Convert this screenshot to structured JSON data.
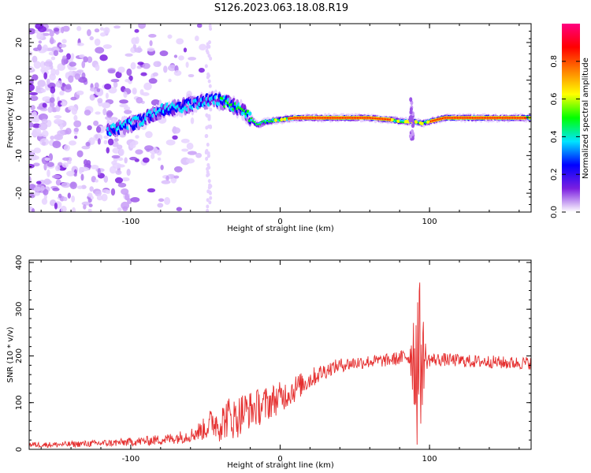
{
  "title": "S126.2023.063.18.08.R19",
  "chart_data": [
    {
      "type": "heatmap",
      "xlabel": "Height of straight line (km)",
      "ylabel": "Frequency (Hz)",
      "xlim": [
        -168,
        168
      ],
      "ylim": [
        -25,
        25
      ],
      "xticks": [
        -100,
        0,
        100
      ],
      "xtick_labels": [
        "-100",
        "0",
        "100"
      ],
      "yticks": [
        -20,
        -10,
        0,
        10,
        20
      ],
      "ytick_labels": [
        "-20",
        "-10",
        "0",
        "10",
        "20"
      ],
      "grid": false,
      "colorbar": {
        "label": "Normalized spectral amplitude",
        "range": [
          0,
          1
        ],
        "ticks": [
          0.0,
          0.2,
          0.4,
          0.6,
          0.8
        ],
        "tick_labels": [
          "0.0",
          "0.2",
          "0.4",
          "0.6",
          "0.8"
        ],
        "colormap": [
          "#ffffff",
          "#7b1fe0",
          "#0000ff",
          "#00e5ff",
          "#00ff00",
          "#ffff00",
          "#ff8000",
          "#ff0000",
          "#ff0080"
        ]
      },
      "ridge": {
        "x": [
          -110,
          -95,
          -80,
          -65,
          -55,
          -45,
          -35,
          -25,
          -20,
          -15,
          -10,
          0,
          10,
          30,
          60,
          75,
          80,
          85,
          90,
          95,
          100,
          110,
          130,
          150,
          168
        ],
        "y": [
          -3,
          -1,
          2,
          3,
          4,
          5,
          4,
          2,
          0,
          -2,
          -1,
          -0.5,
          0,
          0,
          0,
          -0.5,
          -1,
          -1,
          -1,
          -1.5,
          -1,
          0,
          0,
          0,
          0
        ]
      },
      "noise_region_x": [
        -168,
        -60
      ]
    },
    {
      "type": "line",
      "xlabel": "Height of straight line (km)",
      "ylabel": "SNR (10 * v/v)",
      "xlim": [
        -168,
        168
      ],
      "ylim": [
        0,
        405
      ],
      "xticks": [
        -100,
        0,
        100
      ],
      "xtick_labels": [
        "-100",
        "0",
        "100"
      ],
      "yticks": [
        0,
        100,
        200,
        300,
        400
      ],
      "ytick_labels": [
        "0",
        "100",
        "200",
        "300",
        "400"
      ],
      "grid": false,
      "series_color": "#e53030",
      "x": [
        -168,
        -150,
        -130,
        -110,
        -90,
        -75,
        -60,
        -50,
        -45,
        -40,
        -35,
        -30,
        -25,
        -20,
        -15,
        -10,
        -5,
        0,
        5,
        10,
        15,
        20,
        25,
        30,
        35,
        40,
        50,
        60,
        70,
        80,
        85,
        88,
        90,
        92,
        94,
        96,
        98,
        100,
        110,
        120,
        130,
        140,
        150,
        160,
        168
      ],
      "values": [
        10,
        10,
        12,
        14,
        18,
        22,
        30,
        45,
        60,
        55,
        70,
        65,
        80,
        85,
        90,
        95,
        105,
        110,
        120,
        130,
        140,
        150,
        160,
        168,
        175,
        180,
        185,
        188,
        190,
        195,
        200,
        205,
        200,
        195,
        190,
        200,
        190,
        192,
        192,
        190,
        188,
        188,
        185,
        185,
        185
      ],
      "noise_amp": [
        6,
        6,
        7,
        8,
        10,
        12,
        15,
        25,
        35,
        40,
        45,
        45,
        45,
        40,
        40,
        40,
        35,
        35,
        30,
        30,
        25,
        22,
        20,
        18,
        15,
        15,
        15,
        14,
        14,
        15,
        20,
        60,
        150,
        200,
        160,
        80,
        20,
        15,
        14,
        14,
        14,
        14,
        14,
        14,
        14
      ]
    }
  ]
}
